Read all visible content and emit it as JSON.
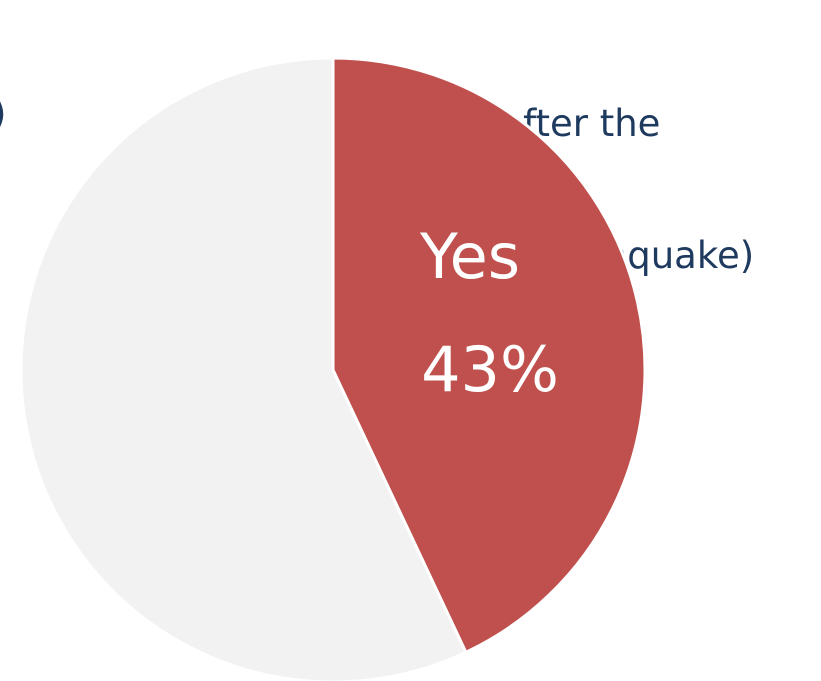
{
  "chart_data": {
    "type": "pie",
    "title": "",
    "annotations": {
      "left_fragment": ")",
      "right_line1": "(after the",
      "right_line2": "Earthquake)"
    },
    "slices": [
      {
        "category": "Yes",
        "value": 43,
        "value_label": "43%",
        "color": "#c0504d"
      },
      {
        "category": "",
        "value": 57,
        "value_label": "",
        "color": "#f2f2f2"
      }
    ],
    "start_angle_deg": 0,
    "direction": "clockwise",
    "slice_border_color": "#ffffff"
  }
}
